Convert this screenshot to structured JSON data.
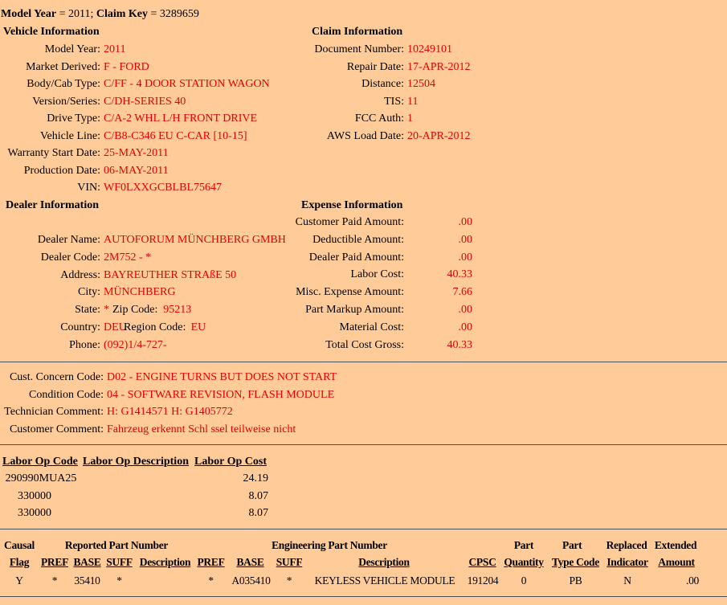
{
  "title": {
    "model_year_label": "Model Year",
    "model_year": "2011",
    "claim_key_label": "Claim Key",
    "claim_key": "3289659"
  },
  "vehicle": {
    "heading": "Vehicle Information",
    "rows": [
      {
        "label": "Model Year:",
        "value": "2011"
      },
      {
        "label": "Market Derived:",
        "value": "F - FORD"
      },
      {
        "label": "Body/Cab Type:",
        "value": "C/FF - 4 DOOR STATION WAGON"
      },
      {
        "label": "Version/Series:",
        "value": "C/DH-SERIES 40"
      },
      {
        "label": "Drive Type:",
        "value": "C/A-2 WHL L/H FRONT DRIVE"
      },
      {
        "label": "Vehicle Line:",
        "value": "C/B8-C346 EU C-CAR [10-15]"
      },
      {
        "label": "Warranty Start Date:",
        "value": "25-MAY-2011"
      },
      {
        "label": "Production Date:",
        "value": "06-MAY-2011"
      },
      {
        "label": "VIN:",
        "value": "WF0LXXGCBLBL75647"
      }
    ]
  },
  "claim": {
    "heading": "Claim Information",
    "rows": [
      {
        "label": "Document Number:",
        "value": "10249101"
      },
      {
        "label": "Repair Date:",
        "value": "17-APR-2012"
      },
      {
        "label": "Distance:",
        "value": "12504"
      },
      {
        "label": "TIS:",
        "value": "11"
      },
      {
        "label": "FCC Auth:",
        "value": "1"
      },
      {
        "label": "AWS Load Date:",
        "value": "20-APR-2012"
      }
    ]
  },
  "dealer": {
    "heading": "Dealer Information",
    "rows": [
      {
        "label": "Dealer Name:",
        "value": "AUTOFORUM MÜNCHBERG GMBH"
      },
      {
        "label": "Dealer Code:",
        "value": "2M752 - *"
      },
      {
        "label": "Address:",
        "value": "BAYREUTHER STRAßE 50"
      },
      {
        "label": "City:",
        "value": "MÜNCHBERG"
      },
      {
        "label": "State:",
        "value": "*",
        "extra_label": "Zip Code:",
        "extra_value": "95213"
      },
      {
        "label": "Country:",
        "value": "DEU",
        "extra_label": "Region Code:",
        "extra_value": "EU"
      },
      {
        "label": "Phone:",
        "value": "(092)1/4-727-"
      }
    ]
  },
  "expense": {
    "heading": "Expense Information",
    "rows": [
      {
        "label": "Customer Paid Amount:",
        "value": ".00"
      },
      {
        "label": "Deductible Amount:",
        "value": ".00"
      },
      {
        "label": "Dealer Paid Amount:",
        "value": ".00"
      },
      {
        "label": "Labor Cost:",
        "value": "40.33"
      },
      {
        "label": "Misc. Expense Amount:",
        "value": "7.66"
      },
      {
        "label": "Part Markup Amount:",
        "value": ".00"
      },
      {
        "label": "Material Cost:",
        "value": ".00"
      },
      {
        "label": "Total Cost Gross:",
        "value": "40.33"
      }
    ]
  },
  "concern": [
    {
      "label": "Cust. Concern Code:",
      "value": "D02 - ENGINE TURNS BUT DOES NOT START"
    },
    {
      "label": "Condition Code:",
      "value": "04 - SOFTWARE REVISION, FLASH MODULE"
    },
    {
      "label": "Technician Comment:",
      "value": "H: G1414571 H: G1405772"
    },
    {
      "label": "Customer Comment:",
      "value": "Fahrzeug erkennt Schl ssel teilweise nicht"
    }
  ],
  "labor": {
    "headers": [
      "Labor Op Code",
      "Labor Op Description",
      "Labor Op Cost"
    ],
    "rows": [
      {
        "code": "290990MUA25",
        "description": "",
        "cost": "24.19"
      },
      {
        "code": "330000",
        "description": "",
        "cost": "8.07"
      },
      {
        "code": "330000",
        "description": "",
        "cost": "8.07"
      }
    ]
  },
  "parts": {
    "group_headers": [
      "Causal",
      "Reported Part Number",
      "Engineering Part Number",
      "Part",
      "Part",
      "Replaced",
      "Extended"
    ],
    "headers": [
      "Flag",
      "PREF",
      "BASE",
      "SUFF",
      "Description",
      "PREF",
      "BASE",
      "SUFF",
      "Description",
      "CPSC",
      "Quantity",
      "Type Code",
      "Indicator",
      "Amount"
    ],
    "rows": [
      [
        "Y",
        "*",
        "35410",
        "*",
        "",
        "*",
        "A035410",
        "*",
        "KEYLESS VEHICLE MODULE",
        "191204",
        "0",
        "PB",
        "N",
        ".00"
      ]
    ]
  },
  "colors": {
    "background": "#ffcc99",
    "value_text": "#e60000",
    "divider": "#4a4f5a"
  }
}
